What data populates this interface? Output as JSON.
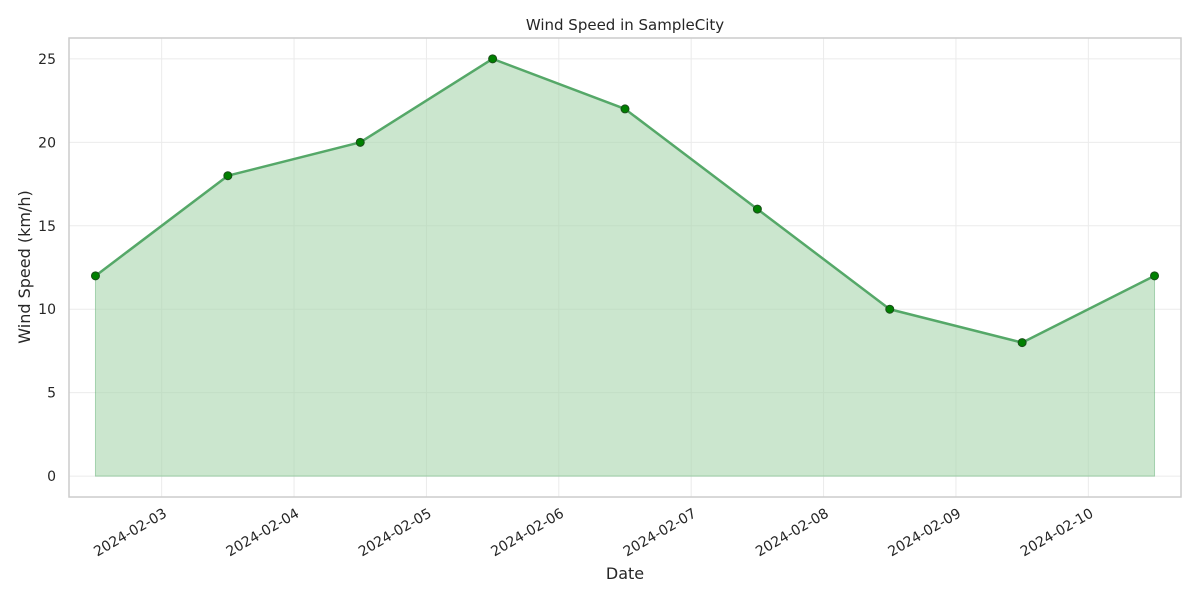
{
  "chart_data": {
    "type": "area",
    "title": "Wind Speed in SampleCity",
    "xlabel": "Date",
    "ylabel": "Wind Speed (km/h)",
    "x": [
      "2024-02-02 12:00",
      "2024-02-03 12:00",
      "2024-02-04 12:00",
      "2024-02-05 12:00",
      "2024-02-06 12:00",
      "2024-02-07 12:00",
      "2024-02-08 12:00",
      "2024-02-09 12:00",
      "2024-02-10 12:00"
    ],
    "values": [
      12,
      18,
      20,
      25,
      22,
      16,
      10,
      8,
      12
    ],
    "xticks": [
      "2024-02-03",
      "2024-02-04",
      "2024-02-05",
      "2024-02-06",
      "2024-02-07",
      "2024-02-08",
      "2024-02-09",
      "2024-02-10"
    ],
    "yticks": [
      "0",
      "5",
      "10",
      "15",
      "20",
      "25"
    ],
    "ylim": [
      -1.25,
      26.25
    ],
    "xlim": [
      "2024-02-02 07:12",
      "2024-02-10 16:48"
    ],
    "grid": true,
    "legend": "none",
    "colors": {
      "line": "#55a868",
      "fill": "#a9d5ad",
      "marker": "#008000",
      "marker_edge": "#1a4d1a",
      "grid": "#ebebeb",
      "axes_edge": "#cccccc"
    }
  }
}
